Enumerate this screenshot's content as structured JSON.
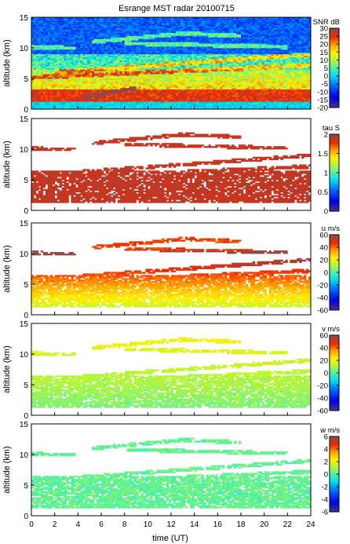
{
  "figure": {
    "title": "Esrange MST radar 20100715",
    "xlabel": "time (UT)"
  },
  "chart_data": [
    {
      "type": "heatmap",
      "variable": "SNR",
      "ylabel": "altitude (km)",
      "colorbar_label": "SNR dB",
      "x_range": [
        0,
        24
      ],
      "y_range": [
        0,
        15
      ],
      "x_ticks": [
        "0",
        "2",
        "4",
        "6",
        "8",
        "10",
        "12",
        "14",
        "16",
        "18",
        "20",
        "22",
        "24"
      ],
      "y_ticks": [
        "0",
        "5",
        "10",
        "15"
      ],
      "color_range": [
        -20,
        30
      ],
      "colorbar_ticks": [
        "30",
        "25",
        "20",
        "15",
        "10",
        "5",
        "0",
        "-5",
        "-10",
        "-15",
        "-20"
      ]
    },
    {
      "type": "heatmap",
      "variable": "tau",
      "ylabel": "altitude (km)",
      "colorbar_label": "tau S",
      "x_range": [
        0,
        24
      ],
      "y_range": [
        0,
        15
      ],
      "x_ticks": [
        "0",
        "2",
        "4",
        "6",
        "8",
        "10",
        "12",
        "14",
        "16",
        "18",
        "20",
        "22",
        "24"
      ],
      "y_ticks": [
        "0",
        "5",
        "10",
        "15"
      ],
      "color_range": [
        0,
        2
      ],
      "colorbar_ticks": [
        "2",
        "1.5",
        "1",
        "0.5",
        "0"
      ]
    },
    {
      "type": "heatmap",
      "variable": "u",
      "ylabel": "altitude (km)",
      "colorbar_label": "u m/s",
      "x_range": [
        0,
        24
      ],
      "y_range": [
        0,
        15
      ],
      "x_ticks": [
        "0",
        "2",
        "4",
        "6",
        "8",
        "10",
        "12",
        "14",
        "16",
        "18",
        "20",
        "22",
        "24"
      ],
      "y_ticks": [
        "0",
        "5",
        "10",
        "15"
      ],
      "color_range": [
        -60,
        60
      ],
      "colorbar_ticks": [
        "60",
        "40",
        "20",
        "0",
        "-20",
        "-40",
        "-60"
      ]
    },
    {
      "type": "heatmap",
      "variable": "v",
      "ylabel": "altitude (km)",
      "colorbar_label": "v m/s",
      "x_range": [
        0,
        24
      ],
      "y_range": [
        0,
        15
      ],
      "x_ticks": [
        "0",
        "2",
        "4",
        "6",
        "8",
        "10",
        "12",
        "14",
        "16",
        "18",
        "20",
        "22",
        "24"
      ],
      "y_ticks": [
        "0",
        "5",
        "10",
        "15"
      ],
      "color_range": [
        -60,
        60
      ],
      "colorbar_ticks": [
        "60",
        "40",
        "20",
        "0",
        "-20",
        "-40",
        "-60"
      ]
    },
    {
      "type": "heatmap",
      "variable": "w",
      "ylabel": "altitude (km)",
      "colorbar_label": "w m/s",
      "x_range": [
        0,
        24
      ],
      "y_range": [
        0,
        15
      ],
      "x_ticks": [
        "0",
        "2",
        "4",
        "6",
        "8",
        "10",
        "12",
        "14",
        "16",
        "18",
        "20",
        "22",
        "24"
      ],
      "y_ticks": [
        "0",
        "5",
        "10",
        "15"
      ],
      "color_range": [
        -6,
        6
      ],
      "colorbar_ticks": [
        "6",
        "4",
        "2",
        "0",
        "-2",
        "-4",
        "-6"
      ]
    }
  ]
}
